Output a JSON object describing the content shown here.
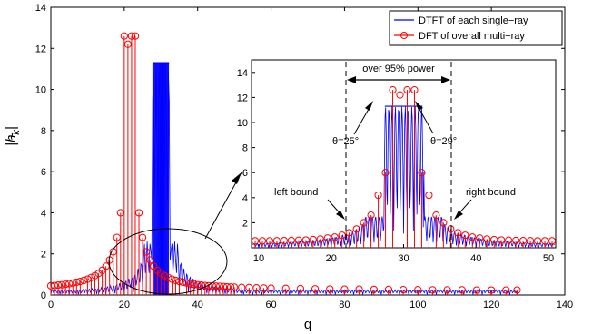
{
  "chart_data": [
    {
      "type": "line",
      "panel": "main",
      "xlabel": "q",
      "ylabel": "|h̃_k|",
      "xlim": [
        0,
        140
      ],
      "ylim": [
        0,
        14
      ],
      "x_ticks": [
        "0",
        "20",
        "40",
        "60",
        "80",
        "100",
        "120",
        "140"
      ],
      "y_ticks": [
        "0",
        "2",
        "4",
        "6",
        "8",
        "10",
        "12",
        "14"
      ],
      "grid": false,
      "legend_position": "top-right",
      "series": [
        {
          "name": "DTFT of each single−ray",
          "style": "blue solid lines (dense oscillating main lobes)",
          "color": "#0000ff",
          "peak_x": [
            28,
            29,
            30,
            31,
            32
          ],
          "peak_y": [
            11.3,
            11.3,
            11.3,
            11.3,
            11.3
          ]
        },
        {
          "name": "DFT of overall multi−ray",
          "style": "red stems with circle markers",
          "color": "#ff0000",
          "x": [
            0,
            1,
            2,
            3,
            4,
            5,
            6,
            7,
            8,
            9,
            10,
            11,
            12,
            13,
            14,
            15,
            16,
            17,
            18,
            19,
            20,
            21,
            22,
            23,
            24,
            25,
            26,
            27,
            28,
            29,
            30,
            31,
            32,
            33,
            34,
            35,
            36,
            37,
            38,
            39,
            40,
            41,
            42,
            43,
            44,
            45,
            46,
            47,
            48,
            49,
            50,
            52,
            54,
            56,
            58,
            60,
            64,
            68,
            72,
            76,
            80,
            84,
            88,
            92,
            96,
            100,
            104,
            108,
            112,
            116,
            120,
            124,
            127
          ],
          "y": [
            0.45,
            0.46,
            0.48,
            0.5,
            0.52,
            0.55,
            0.58,
            0.62,
            0.66,
            0.71,
            0.77,
            0.85,
            0.94,
            1.05,
            1.2,
            1.4,
            1.7,
            2.1,
            2.8,
            4.0,
            12.6,
            12.2,
            12.6,
            12.6,
            4.0,
            2.8,
            2.1,
            1.7,
            1.4,
            1.2,
            1.05,
            0.94,
            0.85,
            0.77,
            0.71,
            0.66,
            0.62,
            0.58,
            0.55,
            0.52,
            0.5,
            0.48,
            0.46,
            0.45,
            0.44,
            0.43,
            0.42,
            0.41,
            0.4,
            0.39,
            0.38,
            0.37,
            0.36,
            0.35,
            0.34,
            0.33,
            0.32,
            0.31,
            0.3,
            0.29,
            0.28,
            0.28,
            0.27,
            0.27,
            0.26,
            0.26,
            0.25,
            0.25,
            0.25,
            0.24,
            0.24,
            0.24,
            0.24
          ]
        }
      ],
      "legend": [
        "DTFT of each single−ray",
        "DFT of overall multi−ray"
      ]
    },
    {
      "type": "line",
      "panel": "inset",
      "xlim": [
        9,
        51
      ],
      "ylim": [
        0,
        15
      ],
      "x_ticks": [
        "10",
        "20",
        "30",
        "40",
        "50"
      ],
      "y_ticks": [
        "2",
        "4",
        "6",
        "8",
        "10",
        "12",
        "14"
      ],
      "annotations": [
        "over 95% power",
        "θ=25°",
        "θ=29°",
        "left bound",
        "right bound"
      ],
      "bounds_x": [
        22.5,
        37.5
      ],
      "red_points": {
        "x": [
          9.5,
          10.5,
          11.5,
          12.5,
          13.5,
          14.5,
          15.5,
          16.5,
          17.5,
          18.5,
          19.5,
          20.5,
          21.5,
          22.5,
          23.5,
          24.5,
          25.5,
          26.5,
          27.5,
          28.5,
          29.5,
          30.5,
          31.5,
          32.5,
          33.5,
          34.5,
          35.5,
          36.5,
          37.5,
          38.5,
          39.5,
          40.5,
          41.5,
          42.5,
          43.5,
          44.5,
          45.5,
          46.5,
          47.5,
          48.5,
          49.5,
          50.5
        ],
        "y": [
          0.55,
          0.55,
          0.55,
          0.56,
          0.57,
          0.58,
          0.6,
          0.62,
          0.65,
          0.7,
          0.78,
          0.85,
          1.0,
          1.2,
          1.5,
          2.0,
          2.6,
          4.2,
          6.0,
          12.6,
          12.2,
          12.6,
          12.6,
          6.0,
          4.2,
          2.6,
          2.0,
          1.5,
          1.2,
          1.0,
          0.85,
          0.78,
          0.7,
          0.65,
          0.62,
          0.6,
          0.58,
          0.57,
          0.56,
          0.55,
          0.55,
          0.55
        ]
      }
    }
  ]
}
